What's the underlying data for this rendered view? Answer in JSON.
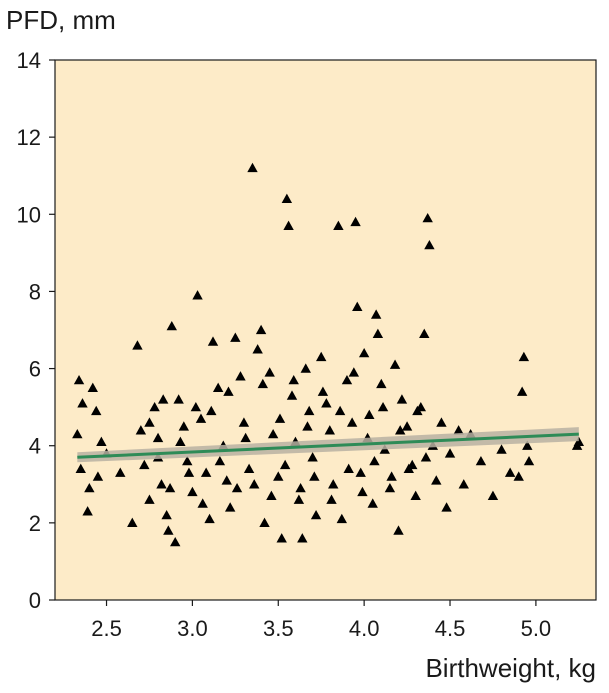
{
  "chart_data": {
    "type": "scatter",
    "title": "",
    "ylabel": "PFD, mm",
    "xlabel": "Birthweight, kg",
    "xlim": [
      2.2,
      5.35
    ],
    "ylim": [
      0,
      14
    ],
    "x_ticks": [
      2.5,
      3.0,
      3.5,
      4.0,
      4.5,
      5.0
    ],
    "x_tick_labels": [
      "2.5",
      "3.0",
      "3.5",
      "4.0",
      "4.5",
      "5.0"
    ],
    "y_ticks": [
      0,
      2,
      4,
      6,
      8,
      10,
      12,
      14
    ],
    "y_tick_labels": [
      "0",
      "2",
      "4",
      "6",
      "8",
      "10",
      "12",
      "14"
    ],
    "grid": false,
    "marker": "triangle",
    "plot_background": "#fdebc8",
    "marker_color": "#000000",
    "trend_line": {
      "x": [
        2.33,
        5.25
      ],
      "y": [
        3.7,
        4.3
      ],
      "color": "#2e8b57",
      "band_color": "#b9b2a2"
    },
    "series": [
      {
        "points": [
          [
            2.34,
            5.7
          ],
          [
            2.36,
            5.1
          ],
          [
            2.42,
            5.5
          ],
          [
            2.44,
            4.9
          ],
          [
            2.33,
            4.3
          ],
          [
            2.35,
            3.4
          ],
          [
            2.4,
            2.9
          ],
          [
            2.39,
            2.3
          ],
          [
            2.47,
            4.1
          ],
          [
            2.5,
            3.8
          ],
          [
            2.45,
            3.2
          ],
          [
            2.58,
            3.3
          ],
          [
            2.68,
            6.6
          ],
          [
            2.65,
            2.0
          ],
          [
            2.7,
            4.4
          ],
          [
            2.72,
            3.5
          ],
          [
            2.75,
            2.6
          ],
          [
            2.78,
            5.0
          ],
          [
            2.8,
            4.2
          ],
          [
            2.82,
            3.0
          ],
          [
            2.85,
            2.2
          ],
          [
            2.86,
            1.8
          ],
          [
            2.88,
            7.1
          ],
          [
            2.9,
            1.5
          ],
          [
            2.92,
            5.2
          ],
          [
            2.95,
            4.5
          ],
          [
            2.97,
            3.6
          ],
          [
            3.0,
            2.8
          ],
          [
            3.03,
            7.9
          ],
          [
            3.05,
            4.7
          ],
          [
            3.08,
            3.3
          ],
          [
            3.1,
            2.1
          ],
          [
            3.12,
            6.7
          ],
          [
            3.15,
            5.5
          ],
          [
            3.18,
            4.0
          ],
          [
            3.2,
            3.1
          ],
          [
            3.22,
            2.4
          ],
          [
            3.25,
            6.8
          ],
          [
            3.28,
            5.8
          ],
          [
            3.3,
            4.6
          ],
          [
            3.33,
            3.4
          ],
          [
            3.35,
            11.2
          ],
          [
            3.38,
            6.5
          ],
          [
            3.4,
            7.0
          ],
          [
            3.42,
            2.0
          ],
          [
            3.45,
            5.9
          ],
          [
            3.47,
            4.3
          ],
          [
            3.5,
            3.2
          ],
          [
            3.52,
            1.6
          ],
          [
            3.55,
            10.4
          ],
          [
            3.56,
            9.7
          ],
          [
            3.58,
            5.3
          ],
          [
            3.6,
            4.1
          ],
          [
            3.62,
            2.6
          ],
          [
            3.64,
            1.6
          ],
          [
            3.66,
            6.0
          ],
          [
            3.68,
            4.9
          ],
          [
            3.7,
            3.7
          ],
          [
            3.72,
            2.2
          ],
          [
            3.75,
            6.3
          ],
          [
            3.78,
            5.1
          ],
          [
            3.8,
            4.4
          ],
          [
            3.82,
            3.0
          ],
          [
            3.85,
            9.7
          ],
          [
            3.87,
            2.1
          ],
          [
            3.9,
            5.7
          ],
          [
            3.93,
            4.6
          ],
          [
            3.95,
            9.8
          ],
          [
            3.96,
            7.6
          ],
          [
            3.98,
            3.3
          ],
          [
            4.0,
            6.4
          ],
          [
            4.03,
            4.8
          ],
          [
            4.05,
            2.5
          ],
          [
            4.07,
            7.4
          ],
          [
            4.08,
            6.9
          ],
          [
            4.1,
            5.6
          ],
          [
            4.12,
            3.9
          ],
          [
            4.15,
            2.9
          ],
          [
            4.18,
            6.1
          ],
          [
            4.2,
            1.8
          ],
          [
            4.22,
            5.2
          ],
          [
            4.25,
            4.5
          ],
          [
            4.28,
            3.5
          ],
          [
            4.3,
            2.7
          ],
          [
            4.33,
            5.0
          ],
          [
            4.35,
            6.9
          ],
          [
            4.37,
            9.9
          ],
          [
            4.38,
            9.2
          ],
          [
            4.4,
            4.0
          ],
          [
            4.42,
            3.1
          ],
          [
            4.45,
            4.6
          ],
          [
            4.48,
            2.4
          ],
          [
            4.5,
            3.8
          ],
          [
            4.55,
            4.4
          ],
          [
            4.58,
            3.0
          ],
          [
            4.62,
            4.3
          ],
          [
            4.68,
            3.6
          ],
          [
            4.75,
            2.7
          ],
          [
            4.8,
            3.9
          ],
          [
            4.85,
            3.3
          ],
          [
            4.9,
            3.2
          ],
          [
            4.93,
            6.3
          ],
          [
            4.92,
            5.4
          ],
          [
            4.95,
            4.0
          ],
          [
            4.96,
            3.6
          ],
          [
            5.25,
            4.1
          ],
          [
            5.24,
            4.0
          ],
          [
            2.75,
            4.6
          ],
          [
            2.8,
            3.7
          ],
          [
            2.83,
            5.2
          ],
          [
            2.87,
            2.9
          ],
          [
            2.93,
            4.1
          ],
          [
            2.98,
            3.3
          ],
          [
            3.02,
            5.0
          ],
          [
            3.06,
            2.5
          ],
          [
            3.11,
            4.9
          ],
          [
            3.16,
            3.6
          ],
          [
            3.21,
            5.4
          ],
          [
            3.26,
            2.9
          ],
          [
            3.31,
            4.2
          ],
          [
            3.36,
            3.0
          ],
          [
            3.41,
            5.6
          ],
          [
            3.46,
            2.7
          ],
          [
            3.51,
            4.7
          ],
          [
            3.54,
            3.5
          ],
          [
            3.59,
            5.7
          ],
          [
            3.63,
            2.9
          ],
          [
            3.67,
            4.5
          ],
          [
            3.71,
            3.2
          ],
          [
            3.76,
            5.4
          ],
          [
            3.81,
            2.6
          ],
          [
            3.86,
            4.9
          ],
          [
            3.91,
            3.4
          ],
          [
            3.94,
            5.9
          ],
          [
            3.99,
            2.8
          ],
          [
            4.02,
            4.2
          ],
          [
            4.06,
            3.6
          ],
          [
            4.11,
            5.0
          ],
          [
            4.16,
            3.2
          ],
          [
            4.21,
            4.4
          ],
          [
            4.26,
            3.4
          ],
          [
            4.31,
            4.9
          ],
          [
            4.36,
            3.7
          ]
        ]
      }
    ]
  }
}
